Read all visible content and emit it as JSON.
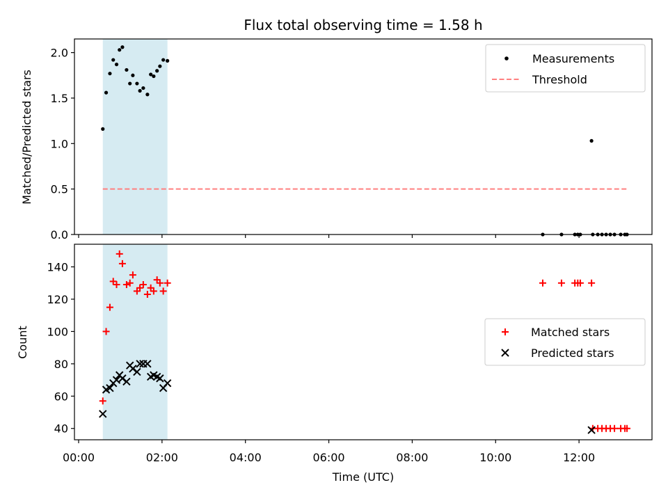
{
  "chart_data": [
    {
      "type": "scatter",
      "title": "Flux total observing time = 1.58 h",
      "xlabel": "",
      "ylabel": "Matched/Predicted stars",
      "xlim": [
        -0.1,
        13.75
      ],
      "ylim": [
        0,
        2.15
      ],
      "yticks": [
        0.0,
        0.5,
        1.0,
        1.5,
        2.0
      ],
      "ytick_labels": [
        "0.0",
        "0.5",
        "1.0",
        "1.5",
        "2.0"
      ],
      "shaded_x": [
        0.58,
        2.13
      ],
      "threshold": {
        "name": "Threshold",
        "value": 0.5,
        "x": [
          0.58,
          13.15
        ],
        "color": "#ff7f7f"
      },
      "legend": {
        "placement": "top-right",
        "entries": [
          "Measurements",
          "Threshold"
        ]
      },
      "series": [
        {
          "name": "Measurements",
          "color": "#000000",
          "x": [
            0.58,
            0.66,
            0.75,
            0.83,
            0.91,
            0.98,
            1.05,
            1.15,
            1.23,
            1.3,
            1.4,
            1.47,
            1.55,
            1.65,
            1.73,
            1.8,
            1.88,
            1.95,
            2.03,
            2.13,
            11.13,
            11.58,
            11.9,
            11.97,
            12.03,
            12.3,
            12.33,
            12.45,
            12.55,
            12.65,
            12.75,
            12.85,
            13.0,
            13.1,
            13.15
          ],
          "y": [
            1.16,
            1.56,
            1.77,
            1.92,
            1.87,
            2.03,
            2.06,
            1.81,
            1.66,
            1.75,
            1.66,
            1.58,
            1.61,
            1.54,
            1.76,
            1.74,
            1.8,
            1.85,
            1.92,
            1.91,
            0.0,
            0.0,
            0.0,
            0.0,
            0.0,
            1.03,
            0.0,
            0.0,
            0.0,
            0.0,
            0.0,
            0.0,
            0.0,
            0.0,
            0.0
          ]
        }
      ]
    },
    {
      "type": "scatter",
      "title": "",
      "xlabel": "Time (UTC)",
      "ylabel": "Count",
      "xlim": [
        -0.1,
        13.75
      ],
      "ylim": [
        33,
        154
      ],
      "yticks": [
        40,
        60,
        80,
        100,
        120,
        140
      ],
      "ytick_labels": [
        "40",
        "60",
        "80",
        "100",
        "120",
        "140"
      ],
      "xticks": [
        0,
        2,
        4,
        6,
        8,
        10,
        12
      ],
      "xtick_labels": [
        "00:00",
        "02:00",
        "04:00",
        "06:00",
        "08:00",
        "10:00",
        "12:00"
      ],
      "shaded_x": [
        0.58,
        2.13
      ],
      "legend": {
        "placement": "center-right",
        "entries": [
          "Matched stars",
          "Predicted stars"
        ]
      },
      "series": [
        {
          "name": "Matched stars",
          "marker": "plus",
          "color": "#ff0000",
          "x": [
            0.58,
            0.66,
            0.75,
            0.83,
            0.91,
            0.98,
            1.05,
            1.15,
            1.23,
            1.3,
            1.4,
            1.47,
            1.55,
            1.65,
            1.73,
            1.8,
            1.88,
            1.95,
            2.03,
            2.13,
            11.13,
            11.58,
            11.9,
            11.97,
            12.03,
            12.3,
            12.33,
            12.45,
            12.55,
            12.65,
            12.75,
            12.85,
            13.0,
            13.1,
            13.15
          ],
          "y": [
            57,
            100,
            115,
            131,
            129,
            148,
            142,
            129,
            130,
            135,
            125,
            127,
            129,
            123,
            127,
            125,
            132,
            130,
            125,
            130,
            130,
            130,
            130,
            130,
            130,
            130,
            40,
            40,
            40,
            40,
            40,
            40,
            40,
            40,
            40
          ]
        },
        {
          "name": "Predicted stars",
          "marker": "x",
          "color": "#000000",
          "x": [
            0.58,
            0.66,
            0.75,
            0.83,
            0.91,
            0.98,
            1.05,
            1.15,
            1.23,
            1.3,
            1.4,
            1.47,
            1.55,
            1.65,
            1.73,
            1.8,
            1.88,
            1.95,
            2.03,
            2.13,
            12.3
          ],
          "y": [
            49,
            64,
            65,
            68,
            70,
            73,
            71,
            69,
            79,
            77,
            75,
            80,
            80,
            80,
            72,
            73,
            72,
            71,
            65,
            68,
            39
          ]
        }
      ]
    }
  ]
}
